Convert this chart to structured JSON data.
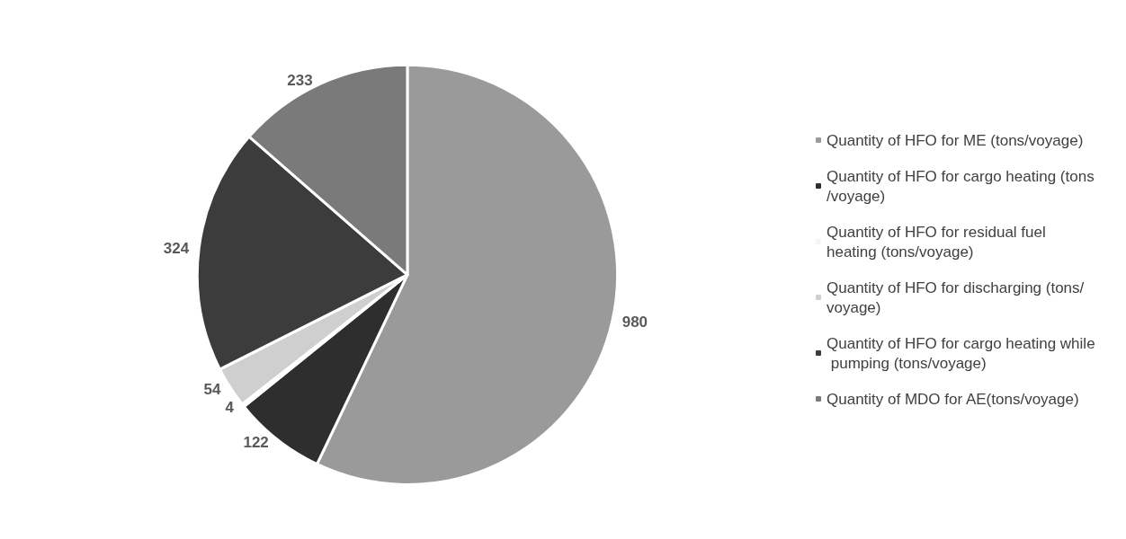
{
  "chart_data": {
    "type": "pie",
    "categories": [
      "Quantity of HFO for ME (tons/voyage)",
      "Quantity of HFO for cargo heating (tons/voyage)",
      "Quantity of HFO for residual fuel heating (tons/voyage)",
      "Quantity of HFO for discharging (tons/voyage)",
      "Quantity of HFO for cargo heating while pumping (tons/voyage)",
      "Quantity of MDO for AE(tons/voyage)"
    ],
    "values": [
      980,
      122,
      4,
      54,
      324,
      233
    ],
    "colors": [
      "#9a9a9a",
      "#2e2e2e",
      "#f4f4f4",
      "#cfcfcf",
      "#3c3c3c",
      "#7a7a7a"
    ],
    "data_labels": true,
    "legend": "right"
  }
}
